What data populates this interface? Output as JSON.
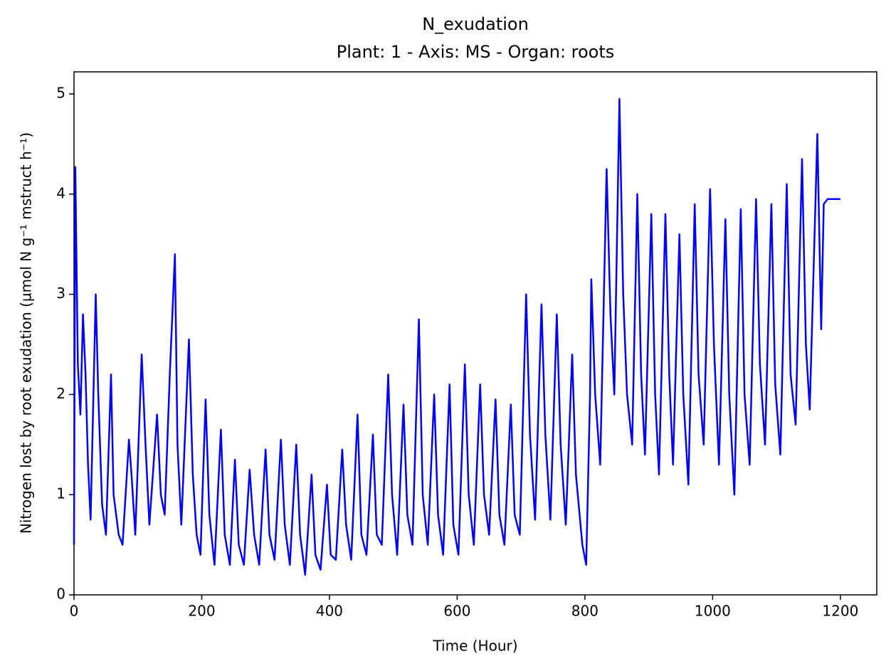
{
  "chart_data": {
    "type": "line",
    "title": "N_exudation",
    "subtitle": "Plant: 1 - Axis: MS - Organ: roots",
    "x_label": "Time (Hour)",
    "y_label": "Nitrogen lost by root exudation (µmol N g⁻¹ mstruct h⁻¹)",
    "color": "#0000ff",
    "grid": false,
    "xlim": [
      0,
      1257
    ],
    "xticks": [
      0,
      200,
      400,
      600,
      800,
      1000,
      1200
    ],
    "ylim": [
      0,
      5.22
    ],
    "yticks": [
      0,
      1,
      2,
      3,
      4,
      5
    ],
    "x": [
      0,
      2,
      6,
      10,
      14,
      18,
      22,
      26,
      34,
      38,
      44,
      50,
      58,
      62,
      70,
      76,
      86,
      90,
      96,
      106,
      112,
      118,
      130,
      136,
      142,
      150,
      158,
      162,
      168,
      180,
      186,
      192,
      198,
      206,
      212,
      220,
      230,
      236,
      244,
      252,
      258,
      266,
      275,
      282,
      290,
      300,
      306,
      314,
      324,
      330,
      338,
      348,
      354,
      362,
      372,
      378,
      386,
      396,
      402,
      410,
      420,
      426,
      434,
      444,
      450,
      458,
      468,
      474,
      482,
      492,
      498,
      506,
      516,
      522,
      530,
      540,
      546,
      554,
      564,
      570,
      578,
      588,
      594,
      602,
      612,
      618,
      626,
      636,
      642,
      650,
      660,
      666,
      674,
      684,
      690,
      698,
      708,
      714,
      722,
      732,
      738,
      746,
      756,
      762,
      770,
      780,
      786,
      796,
      802,
      808,
      810,
      816,
      824,
      834,
      840,
      846,
      854,
      860,
      866,
      874,
      882,
      888,
      894,
      904,
      910,
      916,
      926,
      932,
      938,
      948,
      954,
      962,
      972,
      978,
      986,
      996,
      1002,
      1010,
      1020,
      1026,
      1034,
      1044,
      1050,
      1058,
      1068,
      1074,
      1082,
      1092,
      1098,
      1106,
      1116,
      1122,
      1130,
      1140,
      1146,
      1152,
      1164,
      1170,
      1174,
      1180,
      1200
    ],
    "values": [
      0.5,
      4.27,
      2.3,
      1.8,
      2.8,
      2.2,
      1.3,
      0.75,
      3.0,
      2.0,
      0.9,
      0.6,
      2.2,
      1.0,
      0.6,
      0.5,
      1.55,
      1.2,
      0.6,
      2.4,
      1.5,
      0.7,
      1.8,
      1.0,
      0.8,
      2.2,
      3.4,
      1.5,
      0.7,
      2.55,
      1.2,
      0.6,
      0.4,
      1.95,
      0.8,
      0.3,
      1.65,
      0.6,
      0.3,
      1.35,
      0.5,
      0.3,
      1.25,
      0.6,
      0.3,
      1.45,
      0.6,
      0.35,
      1.55,
      0.7,
      0.3,
      1.5,
      0.6,
      0.2,
      1.2,
      0.4,
      0.25,
      1.1,
      0.4,
      0.35,
      1.45,
      0.7,
      0.35,
      1.8,
      0.6,
      0.4,
      1.6,
      0.6,
      0.5,
      2.2,
      1.0,
      0.4,
      1.9,
      0.8,
      0.5,
      2.75,
      1.0,
      0.5,
      2.0,
      0.8,
      0.4,
      2.1,
      0.7,
      0.4,
      2.3,
      1.0,
      0.5,
      2.1,
      1.0,
      0.6,
      1.95,
      0.8,
      0.5,
      1.9,
      0.8,
      0.6,
      3.0,
      1.6,
      0.75,
      2.9,
      1.6,
      0.75,
      2.8,
      1.5,
      0.7,
      2.4,
      1.2,
      0.5,
      0.3,
      2.0,
      3.15,
      2.0,
      1.3,
      4.25,
      2.8,
      2.0,
      4.95,
      3.0,
      2.0,
      1.5,
      4.0,
      2.2,
      1.4,
      3.8,
      2.0,
      1.2,
      3.8,
      2.2,
      1.3,
      3.6,
      2.0,
      1.1,
      3.9,
      2.2,
      1.5,
      4.05,
      2.5,
      1.3,
      3.75,
      2.0,
      1.0,
      3.85,
      2.0,
      1.3,
      3.95,
      2.3,
      1.5,
      3.9,
      2.1,
      1.4,
      4.1,
      2.2,
      1.7,
      4.35,
      2.5,
      1.85,
      4.6,
      2.65,
      3.9,
      3.95,
      3.95
    ]
  }
}
